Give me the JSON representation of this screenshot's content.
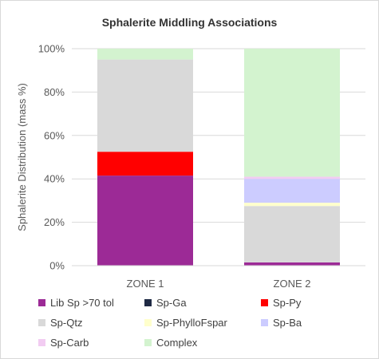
{
  "chart_data": {
    "type": "bar",
    "stacked": true,
    "title": "Sphalerite Middling Associations",
    "xlabel": "",
    "ylabel": "Sphalerite Distribution (mass %)",
    "ylim": [
      0,
      100
    ],
    "yticks": [
      "0%",
      "20%",
      "40%",
      "60%",
      "80%",
      "100%"
    ],
    "grid": true,
    "legend_position": "bottom",
    "categories": [
      "ZONE 1",
      "ZONE 2"
    ],
    "series": [
      {
        "name": "Lib Sp >70 tol",
        "color": "#9c2a96",
        "values": [
          41.5,
          1.5
        ]
      },
      {
        "name": "Sp-Ga",
        "color": "#1f2a44",
        "values": [
          0,
          0
        ]
      },
      {
        "name": "Sp-Py",
        "color": "#ff0000",
        "values": [
          11,
          0
        ]
      },
      {
        "name": "Sp-Qtz",
        "color": "#d9d9d9",
        "values": [
          42.5,
          26
        ]
      },
      {
        "name": "Sp-PhylloFspar",
        "color": "#ffffcc",
        "values": [
          0,
          1.5
        ]
      },
      {
        "name": "Sp-Ba",
        "color": "#ccccff",
        "values": [
          0,
          11
        ]
      },
      {
        "name": "Sp-Carb",
        "color": "#f2ccf2",
        "values": [
          0,
          1
        ]
      },
      {
        "name": "Complex",
        "color": "#d3f3cf",
        "values": [
          5,
          59
        ]
      }
    ]
  }
}
